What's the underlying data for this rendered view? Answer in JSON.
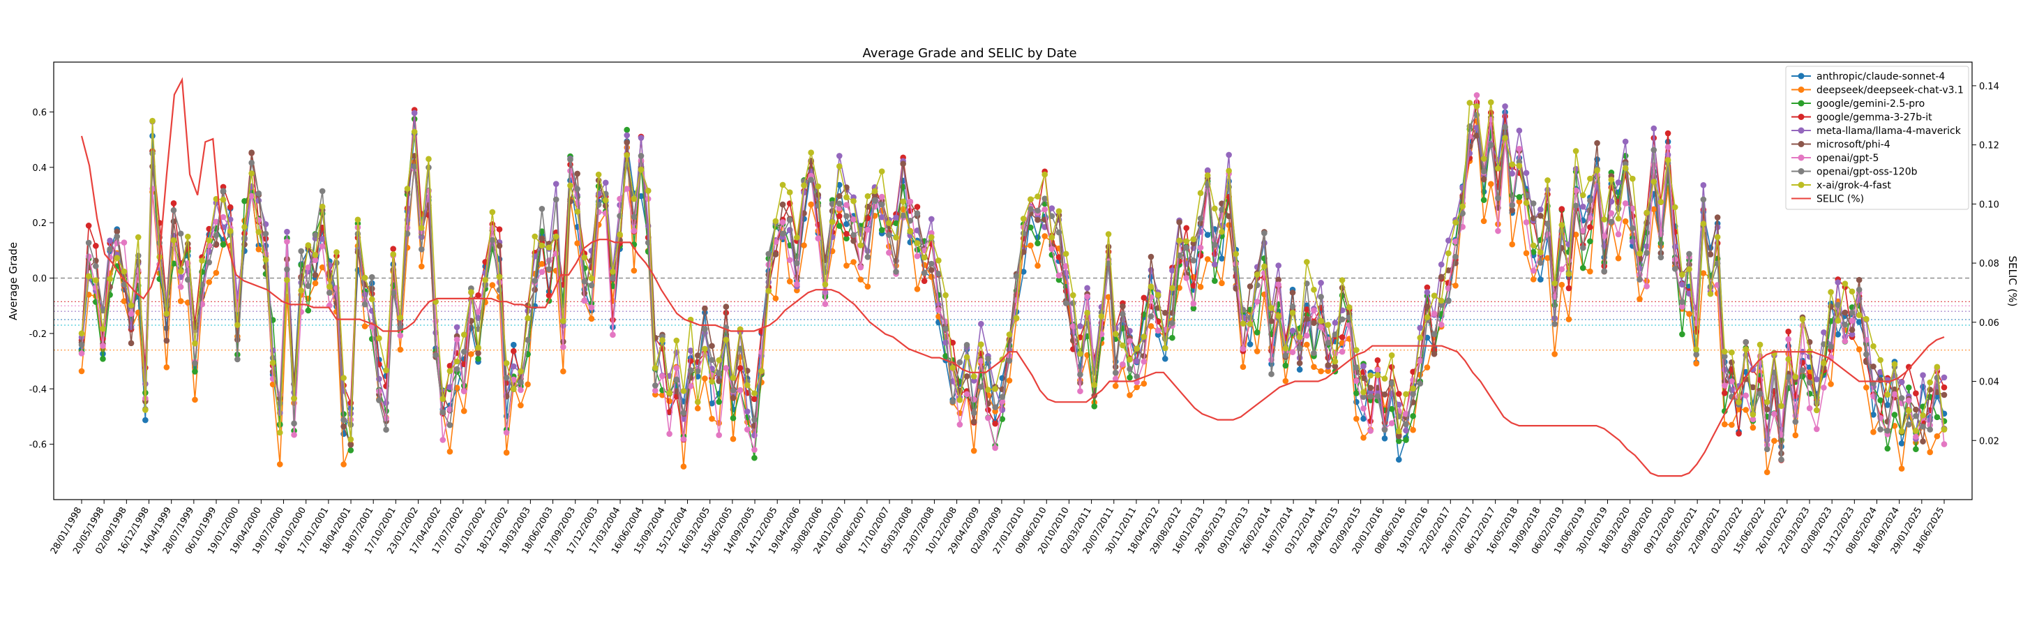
{
  "chart_data": {
    "type": "line",
    "title": "Average Grade and SELIC by Date",
    "ylabel": "Average Grade",
    "y2label": "SELIC (%)",
    "ylim": [
      -0.8,
      0.78
    ],
    "y2lim": [
      0.0,
      0.148
    ],
    "yticks": [
      -0.6,
      -0.4,
      -0.2,
      0.0,
      0.2,
      0.4,
      0.6
    ],
    "yticks_labels": [
      "-0.6",
      "-0.4",
      "-0.2",
      "0.0",
      "0.2",
      "0.4",
      "0.6"
    ],
    "y2ticks": [
      0.02,
      0.04,
      0.06,
      0.08,
      0.1,
      0.12,
      0.14
    ],
    "y2ticks_labels": [
      "0.02",
      "0.04",
      "0.06",
      "0.08",
      "0.10",
      "0.12",
      "0.14"
    ],
    "xtick_labels": [
      "28/01/1998",
      "20/05/1998",
      "02/09/1998",
      "16/12/1998",
      "14/04/1999",
      "28/07/1999",
      "06/10/1999",
      "19/01/2000",
      "19/04/2000",
      "19/07/2000",
      "18/10/2000",
      "17/01/2001",
      "18/04/2001",
      "18/07/2001",
      "17/10/2001",
      "23/01/2002",
      "17/04/2002",
      "17/07/2002",
      "01/10/2002",
      "18/12/2002",
      "19/03/2003",
      "18/06/2003",
      "17/09/2003",
      "17/12/2003",
      "17/03/2004",
      "16/06/2004",
      "15/09/2004",
      "15/12/2004",
      "16/03/2005",
      "15/06/2005",
      "14/09/2005",
      "14/12/2005",
      "19/04/2006",
      "30/08/2006",
      "24/01/2007",
      "06/06/2007",
      "17/10/2007",
      "05/03/2008",
      "23/07/2008",
      "10/12/2008",
      "29/04/2009",
      "02/09/2009",
      "27/01/2010",
      "09/06/2010",
      "20/10/2010",
      "02/03/2011",
      "20/07/2011",
      "30/11/2011",
      "18/04/2012",
      "29/08/2012",
      "16/01/2013",
      "29/05/2013",
      "09/10/2013",
      "26/02/2014",
      "16/07/2014",
      "03/12/2014",
      "29/04/2015",
      "02/09/2015",
      "20/01/2016",
      "08/06/2016",
      "19/10/2016",
      "22/02/2017",
      "26/07/2017",
      "06/12/2017",
      "16/05/2018",
      "19/09/2018",
      "06/02/2019",
      "19/06/2019",
      "30/10/2019",
      "18/03/2020",
      "05/08/2020",
      "09/12/2020",
      "05/05/2021",
      "22/09/2021",
      "02/02/2022",
      "15/06/2022",
      "26/10/2022",
      "22/03/2023",
      "02/08/2023",
      "13/12/2023",
      "08/05/2024",
      "18/09/2024",
      "29/01/2025",
      "18/06/2025"
    ],
    "reference_lines": [
      {
        "value": 0.0,
        "color": "#666666",
        "style": "dashed"
      },
      {
        "value": -0.26,
        "color": "#ff7f0e",
        "style": "dotted"
      },
      {
        "value": -0.085,
        "color": "#d62728",
        "style": "dotted"
      },
      {
        "value": -0.1,
        "color": "#e377c2",
        "style": "dotted"
      },
      {
        "value": -0.12,
        "color": "#9467bd",
        "style": "dotted"
      },
      {
        "value": -0.15,
        "color": "#1f77b4",
        "style": "dotted"
      },
      {
        "value": -0.17,
        "color": "#17becf",
        "style": "dotted"
      }
    ],
    "legend_position": "top-right",
    "series": [
      {
        "name": "anthropic/claude-sonnet-4",
        "color": "#1f77b4",
        "axis": "left",
        "marker": "circle",
        "seed": 11,
        "offset": 0.0
      },
      {
        "name": "deepseek/deepseek-chat-v3.1",
        "color": "#ff7f0e",
        "axis": "left",
        "marker": "circle",
        "seed": 23,
        "offset": -0.08
      },
      {
        "name": "google/gemini-2.5-pro",
        "color": "#2ca02c",
        "axis": "left",
        "marker": "circle",
        "seed": 37,
        "offset": -0.01
      },
      {
        "name": "google/gemma-3-27b-it",
        "color": "#d62728",
        "axis": "left",
        "marker": "circle",
        "seed": 41,
        "offset": 0.03
      },
      {
        "name": "meta-llama/llama-4-maverick",
        "color": "#9467bd",
        "axis": "left",
        "marker": "circle",
        "seed": 53,
        "offset": 0.04
      },
      {
        "name": "microsoft/phi-4",
        "color": "#8c564b",
        "axis": "left",
        "marker": "circle",
        "seed": 67,
        "offset": 0.02
      },
      {
        "name": "openai/gpt-5",
        "color": "#e377c2",
        "axis": "left",
        "marker": "circle",
        "seed": 71,
        "offset": -0.02
      },
      {
        "name": "openai/gpt-oss-120b",
        "color": "#7f7f7f",
        "axis": "left",
        "marker": "circle",
        "seed": 83,
        "offset": 0.01
      },
      {
        "name": "x-ai/grok-4-fast",
        "color": "#bcbd22",
        "axis": "left",
        "marker": "circle",
        "seed": 97,
        "offset": 0.05
      },
      {
        "name": "SELIC (%)",
        "color": "#e8413c",
        "axis": "right",
        "marker": "none"
      }
    ],
    "base_grade": [
      -0.2,
      0.05,
      0.0,
      -0.18,
      0.05,
      0.1,
      0.05,
      -0.15,
      0.02,
      -0.45,
      0.45,
      0.1,
      -0.15,
      0.15,
      0.05,
      0.05,
      -0.3,
      -0.05,
      0.12,
      0.2,
      0.22,
      0.2,
      -0.2,
      0.2,
      0.35,
      0.2,
      0.1,
      -0.25,
      -0.5,
      0.05,
      -0.45,
      0.0,
      0.0,
      0.1,
      0.2,
      0.0,
      0.0,
      -0.5,
      -0.55,
      0.1,
      0.0,
      -0.1,
      -0.35,
      -0.45,
      0.0,
      -0.1,
      0.25,
      0.5,
      0.2,
      0.3,
      -0.2,
      -0.5,
      -0.45,
      -0.3,
      -0.35,
      -0.1,
      -0.2,
      0.0,
      0.15,
      0.05,
      -0.45,
      -0.35,
      -0.3,
      -0.2,
      0.0,
      0.15,
      0.0,
      0.2,
      -0.15,
      0.35,
      0.25,
      -0.05,
      -0.05,
      0.25,
      0.3,
      -0.1,
      0.2,
      0.45,
      0.2,
      0.4,
      0.2,
      -0.3,
      -0.3,
      -0.45,
      -0.35,
      -0.55,
      -0.3,
      -0.4,
      -0.2,
      -0.35,
      -0.45,
      -0.2,
      -0.4,
      -0.3,
      -0.45,
      -0.55,
      -0.3,
      0.0,
      0.1,
      0.2,
      0.15,
      0.0,
      0.3,
      0.35,
      0.2,
      0.0,
      0.2,
      0.3,
      0.2,
      0.2,
      0.1,
      0.15,
      0.3,
      0.25,
      0.1,
      0.1,
      0.3,
      0.2,
      0.15,
      0.05,
      0.1,
      -0.05,
      -0.2,
      -0.35,
      -0.4,
      -0.35,
      -0.45,
      -0.3,
      -0.4,
      -0.5,
      -0.45,
      -0.3,
      -0.1,
      0.1,
      0.2,
      0.15,
      0.25,
      0.2,
      0.1,
      0.0,
      -0.2,
      -0.3,
      -0.1,
      -0.35,
      -0.15,
      0.05,
      -0.3,
      -0.2,
      -0.25,
      -0.35,
      -0.2,
      -0.05,
      -0.15,
      -0.2,
      -0.1,
      0.1,
      0.05,
      0.0,
      0.15,
      0.25,
      0.1,
      0.15,
      0.3,
      0.0,
      -0.2,
      -0.15,
      -0.1,
      0.05,
      -0.25,
      -0.1,
      -0.2,
      -0.15,
      -0.25,
      -0.1,
      -0.2,
      -0.15,
      -0.3,
      -0.25,
      -0.15,
      -0.2,
      -0.35,
      -0.4,
      -0.45,
      -0.35,
      -0.5,
      -0.4,
      -0.55,
      -0.5,
      -0.4,
      -0.3,
      -0.15,
      -0.2,
      -0.1,
      0.0,
      0.1,
      0.3,
      0.5,
      0.6,
      0.35,
      0.5,
      0.3,
      0.55,
      0.3,
      0.4,
      0.25,
      0.15,
      0.1,
      0.25,
      -0.1,
      0.15,
      0.0,
      0.3,
      0.15,
      0.2,
      0.4,
      0.1,
      0.3,
      0.25,
      0.35,
      0.2,
      0.05,
      0.1,
      0.4,
      0.15,
      0.45,
      0.1,
      -0.1,
      0.0,
      -0.2,
      0.2,
      0.0,
      0.1,
      -0.4,
      -0.35,
      -0.5,
      -0.3,
      -0.45,
      -0.35,
      -0.55,
      -0.4,
      -0.6,
      -0.3,
      -0.45,
      -0.25,
      -0.35,
      -0.45,
      -0.3,
      -0.2,
      -0.1,
      -0.15,
      -0.2,
      -0.1,
      -0.3,
      -0.4,
      -0.45,
      -0.5,
      -0.4,
      -0.5,
      -0.45,
      -0.55,
      -0.5,
      -0.45,
      -0.4,
      -0.5
    ],
    "selic": [
      0.123,
      0.113,
      0.095,
      0.083,
      0.08,
      0.076,
      0.073,
      0.07,
      0.068,
      0.072,
      0.08,
      0.11,
      0.137,
      0.142,
      0.11,
      0.103,
      0.121,
      0.122,
      0.093,
      0.085,
      0.076,
      0.074,
      0.073,
      0.072,
      0.071,
      0.069,
      0.067,
      0.066,
      0.066,
      0.066,
      0.065,
      0.065,
      0.065,
      0.061,
      0.061,
      0.061,
      0.061,
      0.06,
      0.059,
      0.057,
      0.057,
      0.057,
      0.058,
      0.06,
      0.064,
      0.067,
      0.068,
      0.068,
      0.068,
      0.068,
      0.068,
      0.068,
      0.068,
      0.068,
      0.067,
      0.067,
      0.066,
      0.066,
      0.065,
      0.065,
      0.065,
      0.07,
      0.076,
      0.076,
      0.08,
      0.085,
      0.087,
      0.088,
      0.088,
      0.087,
      0.087,
      0.087,
      0.083,
      0.08,
      0.076,
      0.071,
      0.067,
      0.063,
      0.061,
      0.06,
      0.059,
      0.059,
      0.059,
      0.058,
      0.057,
      0.057,
      0.057,
      0.057,
      0.058,
      0.059,
      0.061,
      0.064,
      0.066,
      0.068,
      0.07,
      0.071,
      0.071,
      0.071,
      0.07,
      0.068,
      0.066,
      0.063,
      0.06,
      0.058,
      0.056,
      0.055,
      0.053,
      0.051,
      0.05,
      0.049,
      0.048,
      0.048,
      0.047,
      0.046,
      0.044,
      0.043,
      0.043,
      0.043,
      0.045,
      0.047,
      0.05,
      0.05,
      0.046,
      0.042,
      0.037,
      0.034,
      0.033,
      0.033,
      0.033,
      0.033,
      0.033,
      0.035,
      0.037,
      0.04,
      0.04,
      0.04,
      0.04,
      0.041,
      0.042,
      0.043,
      0.043,
      0.04,
      0.037,
      0.034,
      0.031,
      0.029,
      0.028,
      0.027,
      0.027,
      0.027,
      0.028,
      0.03,
      0.032,
      0.034,
      0.036,
      0.038,
      0.039,
      0.04,
      0.04,
      0.04,
      0.04,
      0.041,
      0.043,
      0.045,
      0.047,
      0.049,
      0.05,
      0.052,
      0.052,
      0.052,
      0.052,
      0.052,
      0.052,
      0.052,
      0.052,
      0.052,
      0.052,
      0.051,
      0.05,
      0.047,
      0.043,
      0.04,
      0.036,
      0.032,
      0.028,
      0.026,
      0.025,
      0.025,
      0.025,
      0.025,
      0.025,
      0.025,
      0.025,
      0.025,
      0.025,
      0.025,
      0.025,
      0.024,
      0.022,
      0.02,
      0.017,
      0.015,
      0.012,
      0.009,
      0.008,
      0.008,
      0.008,
      0.008,
      0.009,
      0.012,
      0.016,
      0.021,
      0.026,
      0.031,
      0.036,
      0.04,
      0.044,
      0.047,
      0.049,
      0.05,
      0.05,
      0.05,
      0.05,
      0.05,
      0.05,
      0.049,
      0.048,
      0.046,
      0.044,
      0.042,
      0.04,
      0.04,
      0.04,
      0.04,
      0.04,
      0.041,
      0.043,
      0.046,
      0.049,
      0.052,
      0.054,
      0.055
    ]
  }
}
